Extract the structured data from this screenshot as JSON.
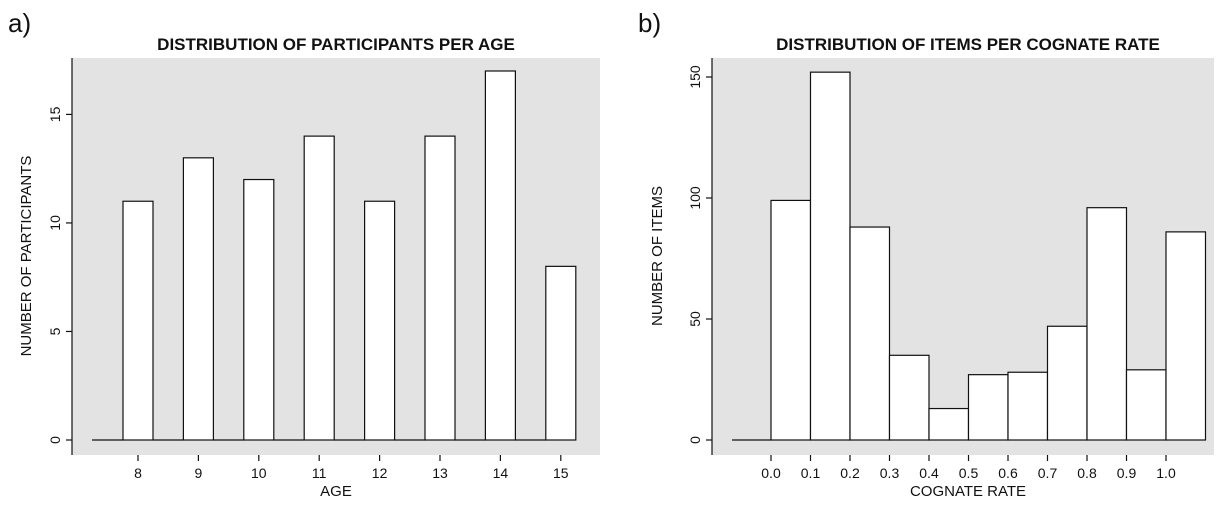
{
  "panels": [
    {
      "letter": "a)"
    },
    {
      "letter": "b)"
    }
  ],
  "chart_data": [
    {
      "type": "bar",
      "title": "DISTRIBUTION OF PARTICIPANTS PER AGE",
      "xlabel": "AGE",
      "ylabel": "NUMBER OF PARTICIPANTS",
      "categories": [
        "8",
        "9",
        "10",
        "11",
        "12",
        "13",
        "14",
        "15"
      ],
      "values": [
        11,
        13,
        12,
        14,
        11,
        14,
        17,
        8
      ],
      "ylim": [
        0,
        17.5
      ],
      "yticks": [
        0,
        5,
        10,
        15
      ],
      "grid": false,
      "legend": "none",
      "colors": {
        "background": "#e3e3e3",
        "bar": "#ffffff",
        "outline": "#111111"
      }
    },
    {
      "type": "bar",
      "title": "DISTRIBUTION OF ITEMS PER COGNATE RATE",
      "xlabel": "COGNATE RATE",
      "ylabel": "NUMBER OF ITEMS",
      "bins": [
        [
          0.0,
          0.1
        ],
        [
          0.1,
          0.2
        ],
        [
          0.2,
          0.3
        ],
        [
          0.3,
          0.4
        ],
        [
          0.4,
          0.5
        ],
        [
          0.5,
          0.6
        ],
        [
          0.6,
          0.7
        ],
        [
          0.7,
          0.8
        ],
        [
          0.8,
          0.9
        ],
        [
          0.9,
          1.0
        ],
        [
          1.0,
          1.1
        ]
      ],
      "values": [
        99,
        152,
        88,
        35,
        13,
        27,
        28,
        47,
        96,
        29,
        86
      ],
      "xticks": [
        "0.0",
        "0.1",
        "0.2",
        "0.3",
        "0.4",
        "0.5",
        "0.6",
        "0.7",
        "0.8",
        "0.9",
        "1.0"
      ],
      "xlim": [
        -0.2,
        1.1
      ],
      "ylim": [
        0,
        160
      ],
      "yticks": [
        0,
        50,
        100,
        150
      ],
      "grid": false,
      "legend": "none",
      "colors": {
        "background": "#e3e3e3",
        "bar": "#ffffff",
        "outline": "#111111"
      }
    }
  ]
}
